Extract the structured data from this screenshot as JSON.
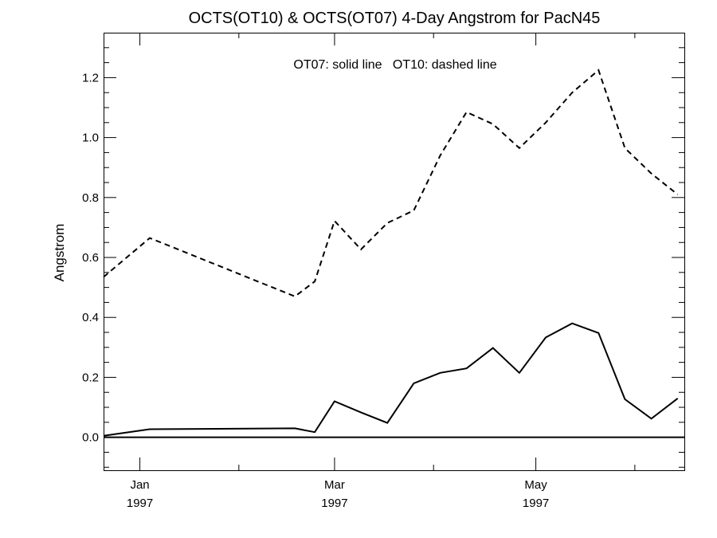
{
  "chart_data": {
    "type": "line",
    "title": "OCTS(OT10) & OCTS(OT07) 4-Day Angstrom for PacN45",
    "annotation": "OT07: solid line   OT10: dashed line",
    "ylabel": "Angstrom",
    "xlabel": "",
    "xlim": [
      "1996-12-21",
      "1997-06-15"
    ],
    "ylim": [
      -0.11,
      1.35
    ],
    "x_ticks": [
      {
        "date": "1997-01-01",
        "month": "Jan",
        "year": "1997"
      },
      {
        "date": "1997-03-01",
        "month": "Mar",
        "year": "1997"
      },
      {
        "date": "1997-05-01",
        "month": "May",
        "year": "1997"
      }
    ],
    "y_ticks": [
      0.0,
      0.2,
      0.4,
      0.6,
      0.8,
      1.0,
      1.2
    ],
    "y_tick_labels": [
      "0.0",
      "0.2",
      "0.4",
      "0.6",
      "0.8",
      "1.0",
      "1.2"
    ],
    "reference_line": 0.0,
    "series": [
      {
        "style": "solid",
        "points": [
          [
            "1996-12-21",
            0.005
          ],
          [
            "1997-01-04",
            0.027
          ],
          [
            "1997-02-17",
            0.03
          ],
          [
            "1997-02-23",
            0.017
          ],
          [
            "1997-03-01",
            0.12
          ],
          [
            "1997-03-09",
            0.083
          ],
          [
            "1997-03-17",
            0.048
          ],
          [
            "1997-03-25",
            0.18
          ],
          [
            "1997-04-02",
            0.215
          ],
          [
            "1997-04-10",
            0.23
          ],
          [
            "1997-04-18",
            0.298
          ],
          [
            "1997-04-26",
            0.215
          ],
          [
            "1997-05-04",
            0.333
          ],
          [
            "1997-05-12",
            0.38
          ],
          [
            "1997-05-20",
            0.348
          ],
          [
            "1997-05-28",
            0.127
          ],
          [
            "1997-06-05",
            0.062
          ],
          [
            "1997-06-13",
            0.13
          ]
        ]
      },
      {
        "style": "dashed",
        "points": [
          [
            "1996-12-21",
            0.535
          ],
          [
            "1997-01-04",
            0.665
          ],
          [
            "1997-02-17",
            0.47
          ],
          [
            "1997-02-23",
            0.52
          ],
          [
            "1997-03-01",
            0.722
          ],
          [
            "1997-03-09",
            0.627
          ],
          [
            "1997-03-17",
            0.715
          ],
          [
            "1997-03-25",
            0.757
          ],
          [
            "1997-04-02",
            0.94
          ],
          [
            "1997-04-10",
            1.085
          ],
          [
            "1997-04-18",
            1.045
          ],
          [
            "1997-04-26",
            0.965
          ],
          [
            "1997-05-04",
            1.05
          ],
          [
            "1997-05-12",
            1.15
          ],
          [
            "1997-05-20",
            1.225
          ],
          [
            "1997-05-28",
            0.965
          ],
          [
            "1997-06-05",
            0.88
          ],
          [
            "1997-06-13",
            0.81
          ]
        ]
      }
    ]
  }
}
